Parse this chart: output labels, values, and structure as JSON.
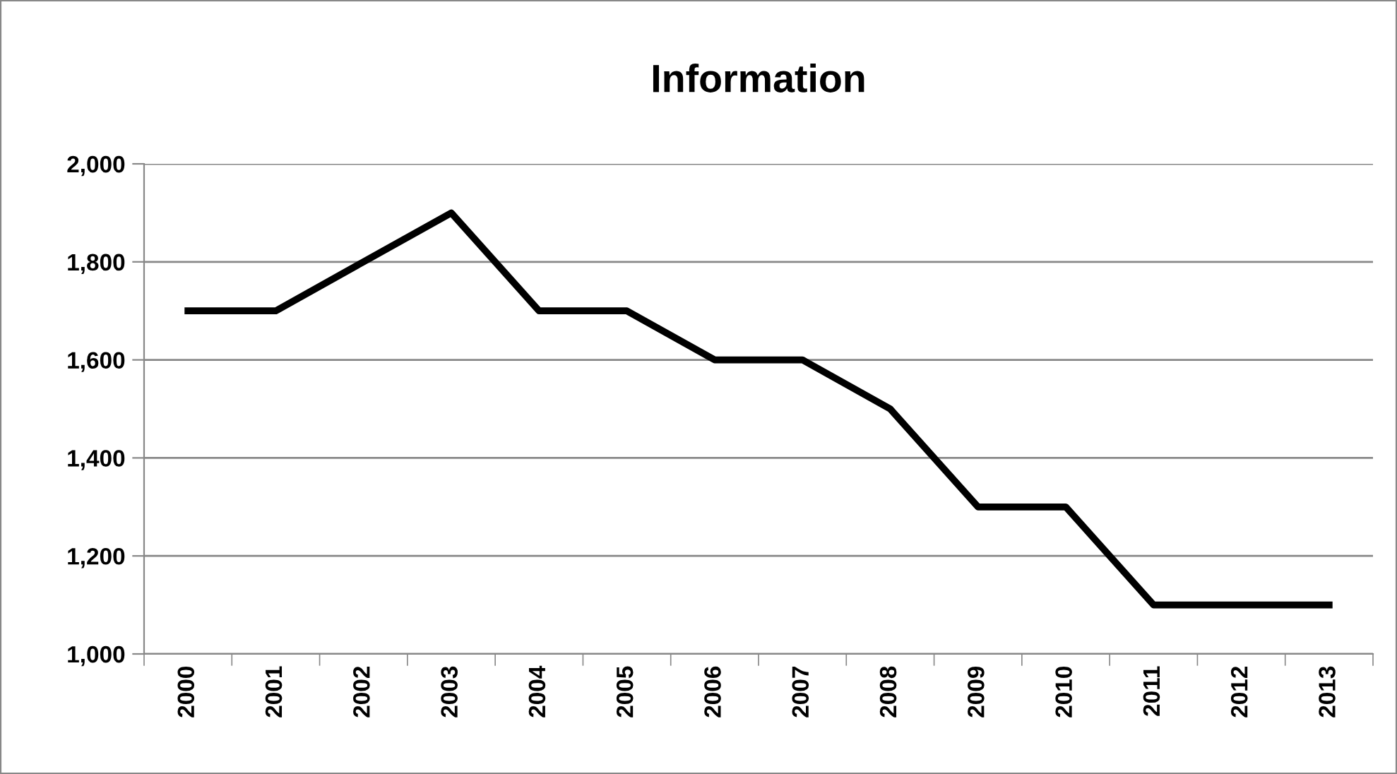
{
  "chart_data": {
    "type": "line",
    "title": "Information",
    "categories": [
      "2000",
      "2001",
      "2002",
      "2003",
      "2004",
      "2005",
      "2006",
      "2007",
      "2008",
      "2009",
      "2010",
      "2011",
      "2012",
      "2013"
    ],
    "series": [
      {
        "color": "#000000",
        "values": [
          1700,
          1700,
          1800,
          1900,
          1700,
          1700,
          1600,
          1600,
          1500,
          1300,
          1300,
          1100,
          1100,
          1100
        ]
      }
    ],
    "ylim": [
      1000,
      2000
    ],
    "yticks": [
      {
        "value": 1000,
        "label": "1,000"
      },
      {
        "value": 1200,
        "label": "1,200"
      },
      {
        "value": 1400,
        "label": "1,400"
      },
      {
        "value": 1600,
        "label": "1,600"
      },
      {
        "value": 1800,
        "label": "1,800"
      },
      {
        "value": 2000,
        "label": "2,000"
      }
    ],
    "grid": "y",
    "legend": false,
    "marker": "none",
    "line_style": "solid"
  }
}
